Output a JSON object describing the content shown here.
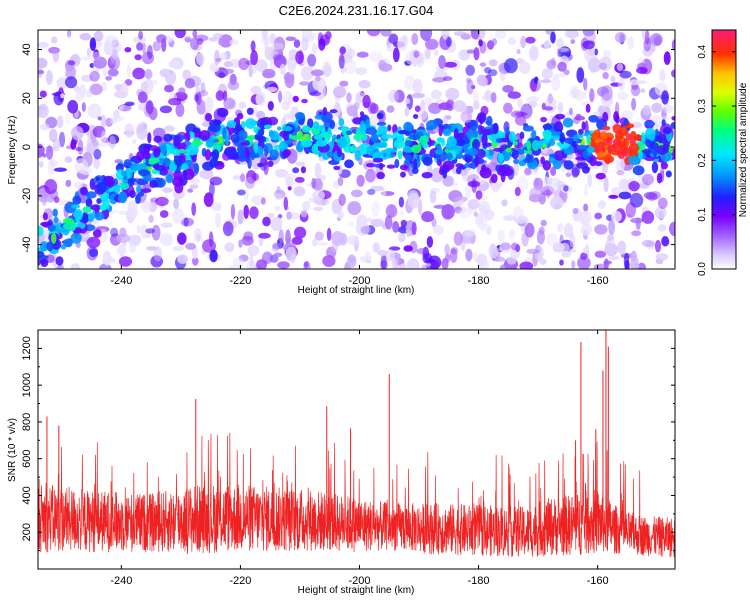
{
  "title": "C2E6.2024.231.16.17.G04",
  "chart_data": [
    {
      "type": "heatmap",
      "xlabel": "Height of straight line (km)",
      "ylabel": "Frequency (Hz)",
      "xlim": [
        -254,
        -147
      ],
      "ylim": [
        -50,
        48
      ],
      "xticks": [
        -240,
        -220,
        -200,
        -180,
        -160
      ],
      "yticks": [
        -40,
        -20,
        0,
        20,
        40
      ],
      "colorbar": {
        "label": "Normalized spectral amplitude",
        "range": [
          0,
          0.44
        ],
        "ticks": [
          0.0,
          0.1,
          0.2,
          0.3,
          0.4
        ]
      },
      "ridge": {
        "x": [
          -252,
          -246,
          -240,
          -234,
          -228,
          -222,
          -216,
          -210,
          -204,
          -198,
          -192,
          -186,
          -180,
          -174,
          -168,
          -162,
          -156,
          -150,
          -147
        ],
        "frequency": [
          -38,
          -26,
          -14,
          -7,
          0,
          3,
          4,
          4,
          4,
          2,
          1,
          0,
          1,
          0,
          1,
          2,
          1,
          0,
          0
        ]
      },
      "peak": {
        "x": -157,
        "frequency": 1
      }
    },
    {
      "type": "line",
      "xlabel": "Height of straight line (km)",
      "ylabel": "SNR (10 * v/v)",
      "xlim": [
        -254,
        -147
      ],
      "ylim": [
        0,
        1300
      ],
      "xticks": [
        -240,
        -220,
        -200,
        -180,
        -160
      ],
      "yticks": [
        200,
        400,
        600,
        800,
        1000,
        1200
      ],
      "color": "#ee2222",
      "envelope": {
        "x": [
          -254,
          -245,
          -235,
          -228,
          -222,
          -215,
          -208,
          -200,
          -195,
          -188,
          -180,
          -172,
          -168,
          -164,
          -160,
          -156,
          -152,
          -147
        ],
        "baseline": [
          280,
          260,
          250,
          270,
          280,
          270,
          265,
          240,
          230,
          220,
          210,
          200,
          230,
          240,
          260,
          200,
          180,
          170
        ],
        "amplitude": [
          190,
          170,
          160,
          190,
          190,
          180,
          170,
          150,
          130,
          140,
          140,
          140,
          160,
          170,
          180,
          120,
          110,
          110
        ]
      },
      "spikes": [
        {
          "x": -252.5,
          "y": 830
        },
        {
          "x": -250.5,
          "y": 780
        },
        {
          "x": -227.5,
          "y": 925
        },
        {
          "x": -205.5,
          "y": 885
        },
        {
          "x": -195,
          "y": 1060
        },
        {
          "x": -201.5,
          "y": 765
        },
        {
          "x": -162.8,
          "y": 1235
        },
        {
          "x": -159.1,
          "y": 1080
        },
        {
          "x": -158.6,
          "y": 1300
        },
        {
          "x": -158.2,
          "y": 1210
        },
        {
          "x": -163.7,
          "y": 700
        },
        {
          "x": -160.3,
          "y": 760
        }
      ]
    }
  ]
}
